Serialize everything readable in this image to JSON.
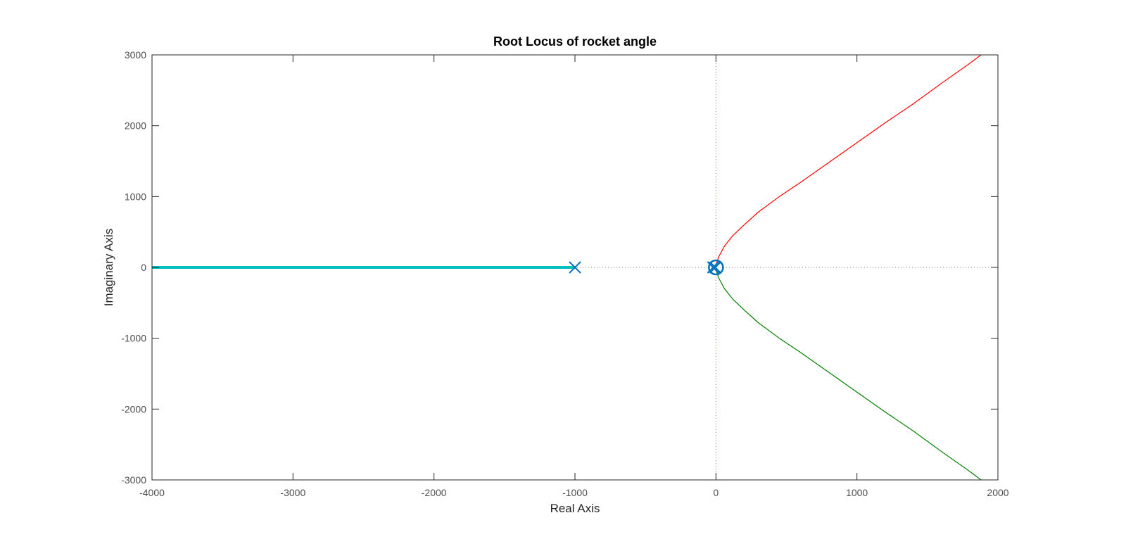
{
  "chart_data": {
    "type": "line",
    "title": "Root Locus of rocket angle",
    "xlabel": "Real Axis",
    "ylabel": "Imaginary Axis",
    "xlim": [
      -4000,
      2000
    ],
    "ylim": [
      -3000,
      3000
    ],
    "xticks": [
      -4000,
      -3000,
      -2000,
      -1000,
      0,
      1000,
      2000
    ],
    "yticks": [
      -3000,
      -2000,
      -1000,
      0,
      1000,
      2000,
      3000
    ],
    "grid": false,
    "reference_lines": {
      "real_axis_zero": true,
      "imag_axis_zero": true
    },
    "series": [
      {
        "color": "#ff0000",
        "points": [
          [
            0,
            0
          ],
          [
            5,
            60
          ],
          [
            20,
            150
          ],
          [
            60,
            300
          ],
          [
            120,
            450
          ],
          [
            200,
            600
          ],
          [
            300,
            780
          ],
          [
            450,
            1000
          ],
          [
            600,
            1200
          ],
          [
            800,
            1480
          ],
          [
            1000,
            1760
          ],
          [
            1200,
            2040
          ],
          [
            1400,
            2310
          ],
          [
            1600,
            2600
          ],
          [
            1800,
            2880
          ],
          [
            1880,
            3000
          ]
        ]
      },
      {
        "color": "#008000",
        "points": [
          [
            0,
            0
          ],
          [
            5,
            -60
          ],
          [
            20,
            -150
          ],
          [
            60,
            -300
          ],
          [
            120,
            -450
          ],
          [
            200,
            -600
          ],
          [
            300,
            -780
          ],
          [
            450,
            -1000
          ],
          [
            600,
            -1200
          ],
          [
            800,
            -1480
          ],
          [
            1000,
            -1760
          ],
          [
            1200,
            -2040
          ],
          [
            1400,
            -2310
          ],
          [
            1600,
            -2600
          ],
          [
            1800,
            -2880
          ],
          [
            1880,
            -3000
          ]
        ]
      },
      {
        "color": "#00bfbf",
        "points": [
          [
            -1000,
            0
          ],
          [
            -4000,
            0
          ]
        ]
      }
    ],
    "poles": [
      [
        -1000,
        0
      ],
      [
        -20,
        0
      ],
      [
        -5,
        0
      ]
    ],
    "zeros": [
      [
        0,
        0
      ]
    ],
    "marker_color": "#0072bd"
  }
}
